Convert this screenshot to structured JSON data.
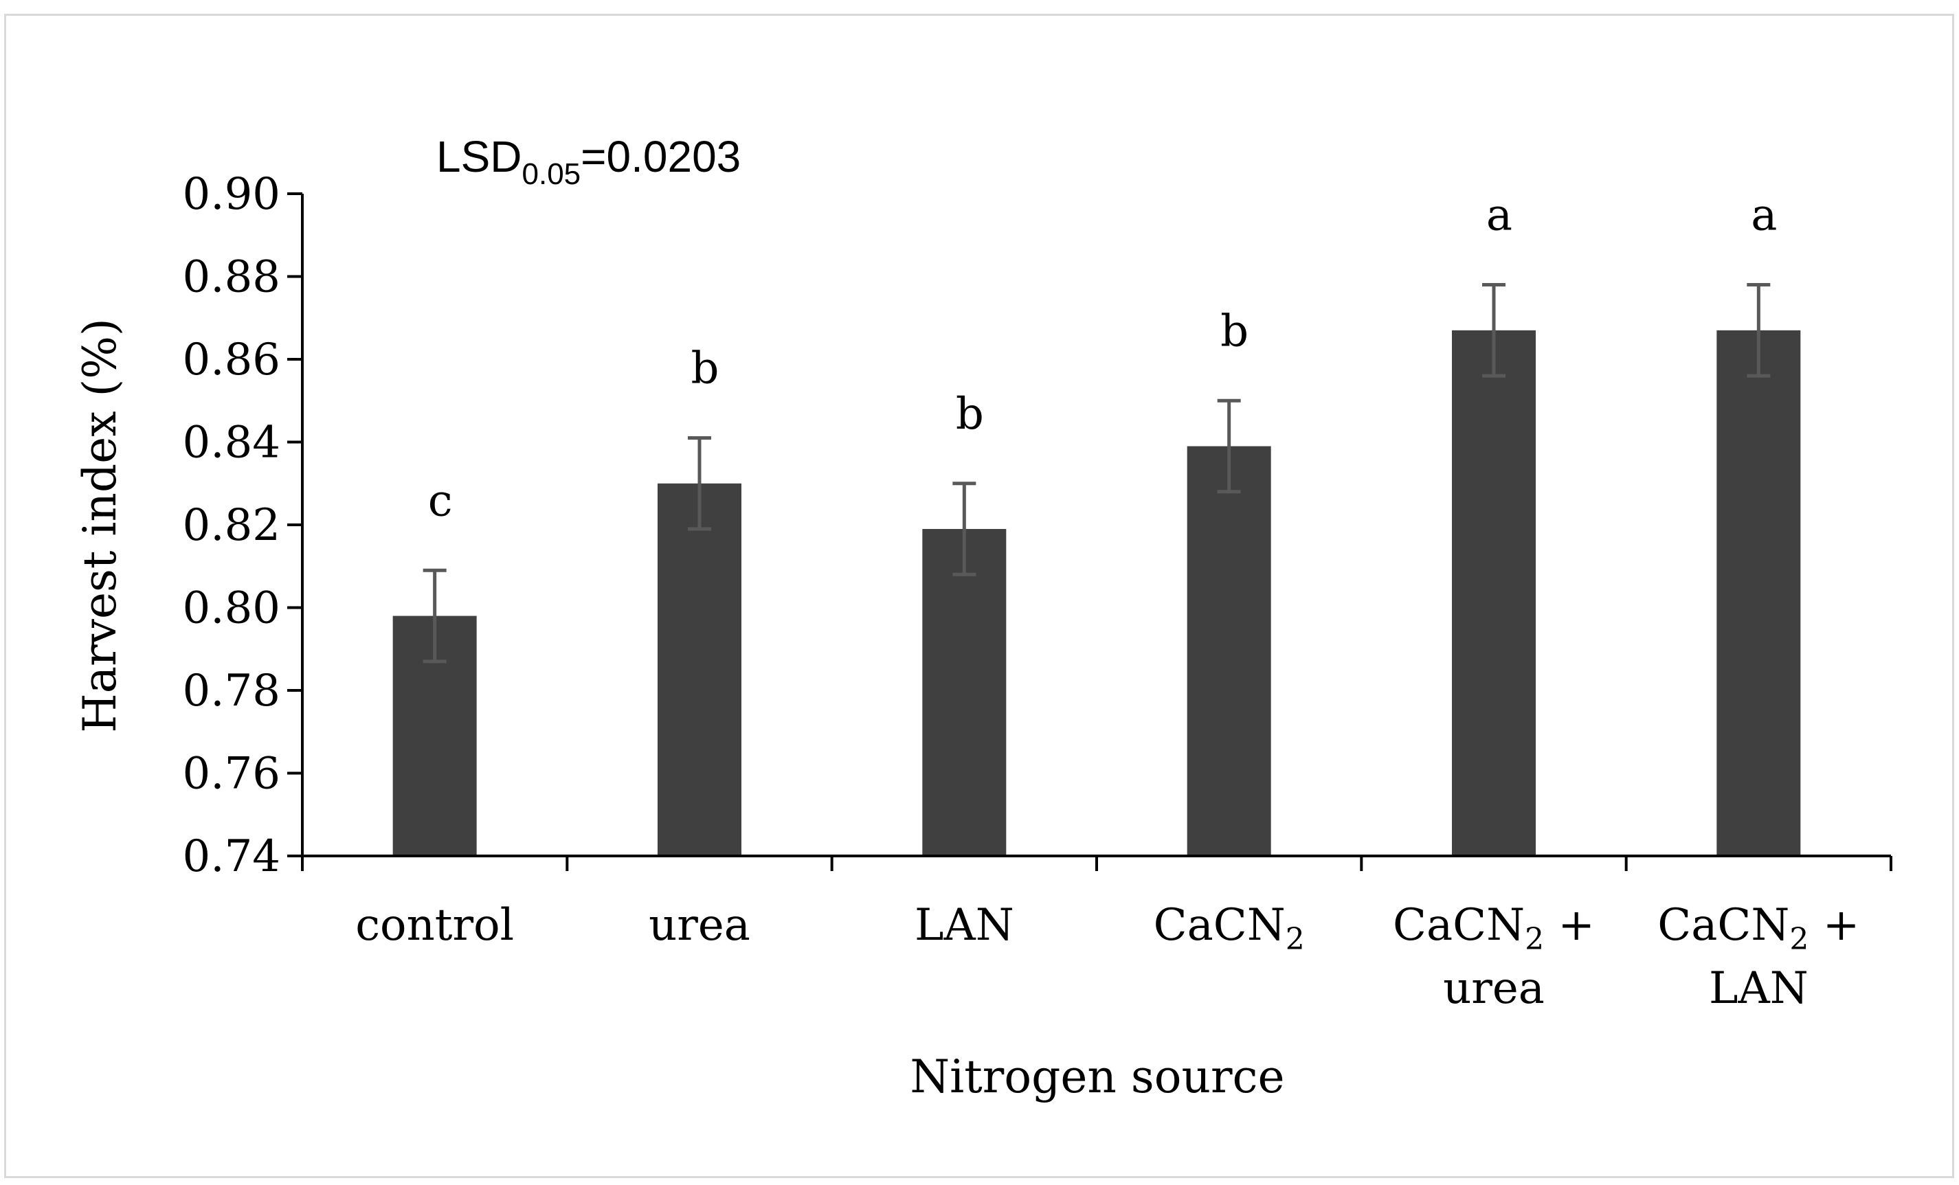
{
  "chart_data": {
    "type": "bar",
    "title": "",
    "annotation": {
      "main": "LSD",
      "subscript": "0.05",
      "value": "=0.0203"
    },
    "xlabel": "Nitrogen source",
    "ylabel": "Harvest index (%)",
    "ylim": [
      0.74,
      0.9
    ],
    "yticks": [
      "0.74",
      "0.76",
      "0.78",
      "0.80",
      "0.82",
      "0.84",
      "0.86",
      "0.88",
      "0.90"
    ],
    "categories": [
      {
        "lines": [
          {
            "text": "control"
          }
        ]
      },
      {
        "lines": [
          {
            "text": "urea"
          }
        ]
      },
      {
        "lines": [
          {
            "text": "LAN"
          }
        ]
      },
      {
        "lines": [
          {
            "text": "CaCN",
            "sub": "2"
          }
        ]
      },
      {
        "lines": [
          {
            "text": "CaCN",
            "sub": "2",
            "tail": " +"
          },
          {
            "text": "urea"
          }
        ]
      },
      {
        "lines": [
          {
            "text": "CaCN",
            "sub": "2",
            "tail": " +"
          },
          {
            "text": "LAN"
          }
        ]
      }
    ],
    "values": [
      0.798,
      0.83,
      0.819,
      0.839,
      0.867,
      0.867
    ],
    "error": [
      0.011,
      0.011,
      0.011,
      0.011,
      0.011,
      0.011
    ],
    "significance_letters": [
      "c",
      "b",
      "b",
      "b",
      "a",
      "a"
    ],
    "bar_color": "#404040",
    "error_bar_color": "#595959",
    "axis_color": "#000000"
  }
}
